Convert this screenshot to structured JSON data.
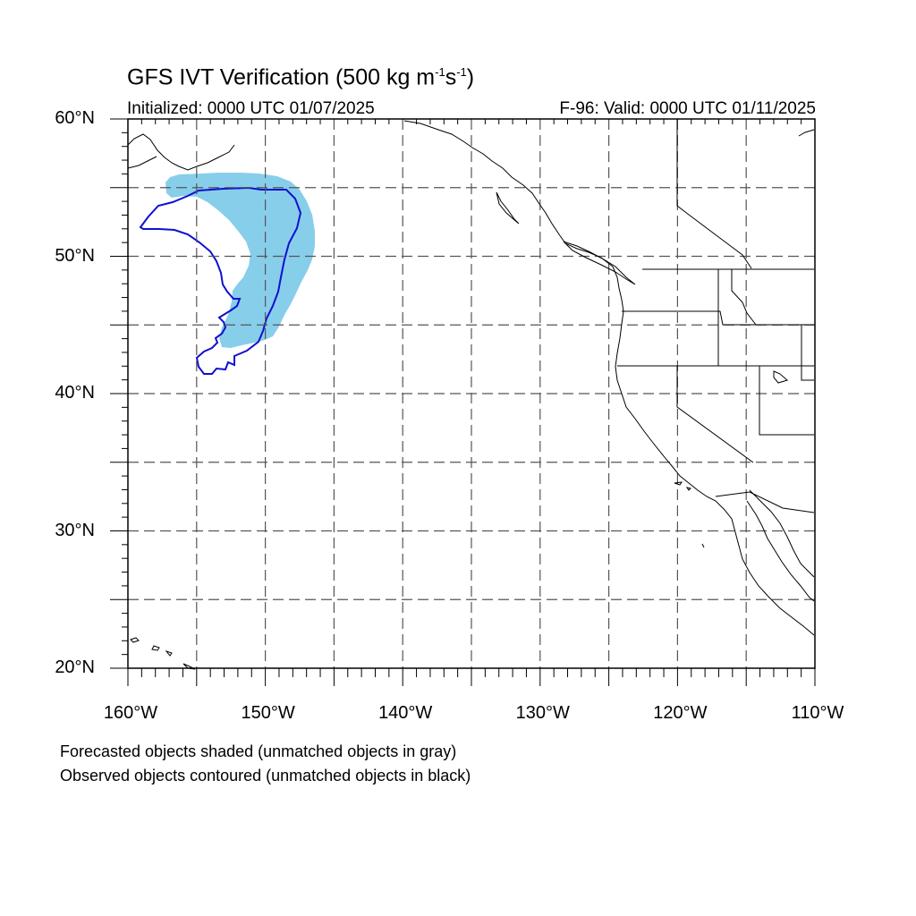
{
  "title": {
    "prefix": "GFS IVT Verification (500 kg m",
    "exp1": "-1",
    "middle": "s",
    "exp2": "-1",
    "suffix": ")"
  },
  "initialized": "Initialized: 0000 UTC 01/07/2025",
  "valid": "F-96: Valid: 0000 UTC 01/11/2025",
  "lat_labels": [
    "60°N",
    "50°N",
    "40°N",
    "30°N",
    "20°N"
  ],
  "lon_labels": [
    "160°W",
    "150°W",
    "140°W",
    "130°W",
    "120°W",
    "110°W"
  ],
  "notes": [
    "Forecasted objects shaded (unmatched objects in gray)",
    "Observed objects contoured (unmatched objects in black)"
  ],
  "colors": {
    "forecast_fill": "#87CEEB",
    "observed_contour": "#1010D0",
    "grid": "#555555",
    "coast": "#000000"
  }
}
